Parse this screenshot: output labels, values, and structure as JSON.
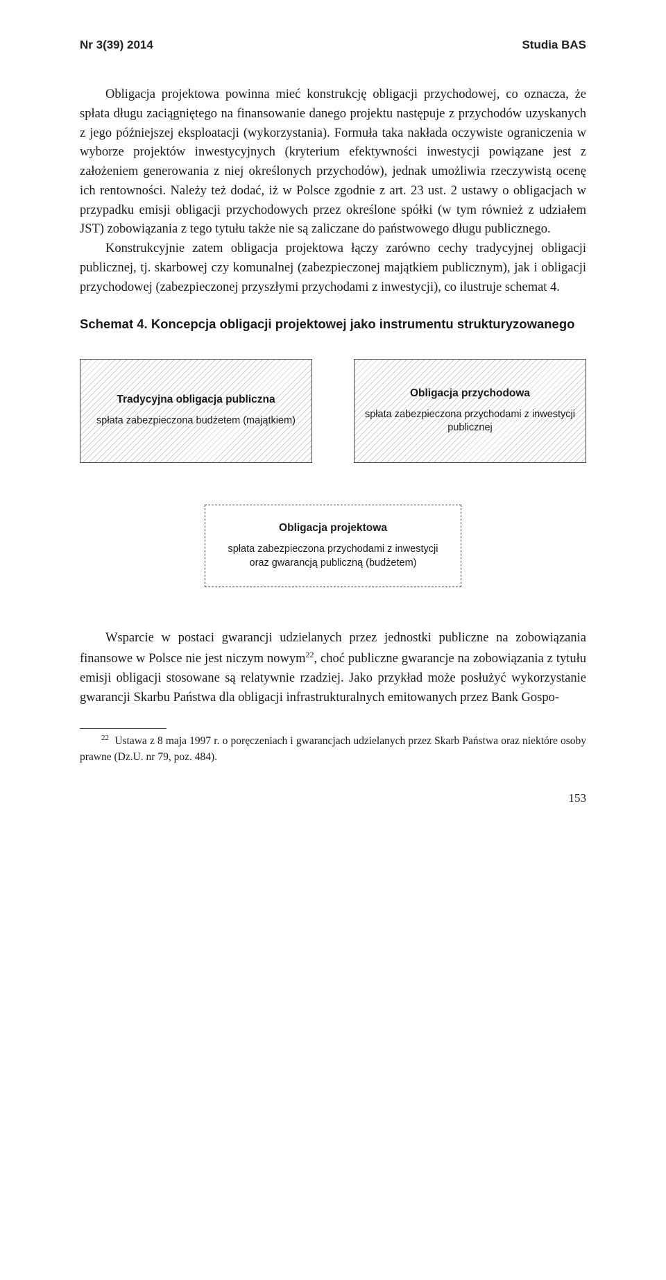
{
  "header": {
    "left": "Nr 3(39) 2014",
    "right": "Studia BAS"
  },
  "paragraphs": {
    "p1": "Obligacja projektowa powinna mieć konstrukcję obligacji przychodowej, co oznacza, że spłata długu zaciągniętego na finansowanie danego projektu następuje z przychodów uzyskanych z jego późniejszej eksploatacji (wykorzystania). Formuła taka nakłada oczywiste ograniczenia w wyborze projektów inwestycyjnych (kryterium efektywności inwestycji powiązane jest z założeniem generowania z niej określonych przychodów), jednak umożliwia rzeczywistą ocenę ich rentowności. Należy też dodać, iż w Polsce zgodnie z art. 23 ust. 2 ustawy o obligacjach w przypadku emisji obligacji przychodowych przez określone spółki (w tym również z udziałem JST) zobowiązania z tego tytułu także nie są zaliczane do państwowego długu publicznego.",
    "p2": "Konstrukcyjnie zatem obligacja projektowa łączy zarówno cechy tradycyjnej obligacji publicznej, tj. skarbowej czy komunalnej (zabezpieczonej majątkiem publicznym), jak i obligacji przychodowej (zabezpieczonej przyszłymi przychodami z inwestycji), co ilustruje schemat 4.",
    "p3a": "Wsparcie w postaci gwarancji udzielanych przez jednostki publiczne na zobowiązania finansowe w Polsce nie jest niczym nowym",
    "p3b": ", choć publiczne gwarancje na zobowiązania z tytułu emisji obligacji stosowane są relatywnie rzadziej. Jako przykład może posłużyć wykorzystanie gwarancji Skarbu Państwa dla obligacji infrastrukturalnych emitowanych przez Bank Gospo-"
  },
  "schema": {
    "heading": "Schemat 4. Koncepcja obligacji projektowej jako instrumentu strukturyzowanego",
    "box1": {
      "title": "Tradycyjna obligacja publiczna",
      "sub": "spłata zabezpieczona budżetem (majątkiem)"
    },
    "box2": {
      "title": "Obligacja przychodowa",
      "sub": "spłata zabezpieczona przychodami z inwestycji publicznej"
    },
    "box3": {
      "title": "Obligacja projektowa",
      "sub": "spłata zabezpieczona przychodami z inwestycji oraz gwarancją publiczną (budżetem)"
    }
  },
  "footnote": {
    "num": "22",
    "text": "Ustawa z 8 maja 1997 r. o poręczeniach i gwarancjach udzielanych przez Skarb Państwa oraz niektóre osoby prawne (Dz.U. nr 79, poz. 484)."
  },
  "pageNumber": "153"
}
